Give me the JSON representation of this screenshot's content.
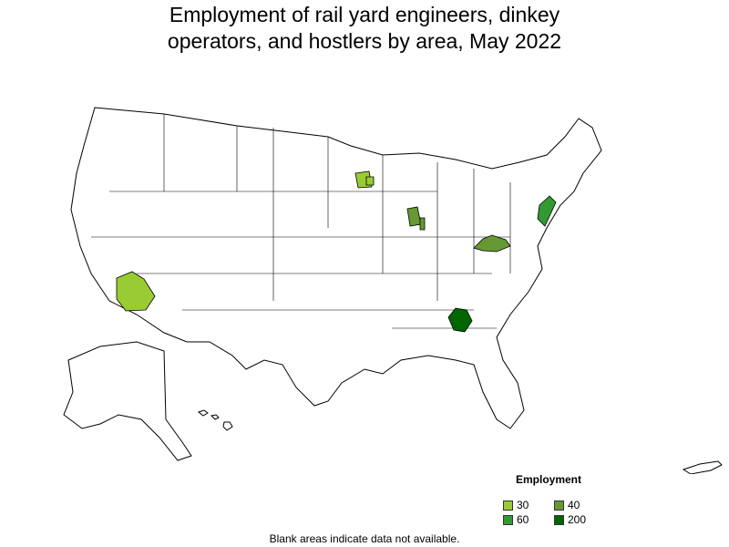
{
  "title_line1": "Employment of rail yard engineers, dinkey",
  "title_line2": "operators, and hostlers by area, May 2022",
  "legend": {
    "title": "Employment",
    "items": [
      {
        "label": "30",
        "color": "#99cc33"
      },
      {
        "label": "40",
        "color": "#669933"
      },
      {
        "label": "60",
        "color": "#339933"
      },
      {
        "label": "200",
        "color": "#006600"
      }
    ]
  },
  "footnote": "Blank areas indicate data not available.",
  "shaded_areas": [
    {
      "region": "southern California",
      "level": "30"
    },
    {
      "region": "central Minnesota",
      "level": "30"
    },
    {
      "region": "northern Illinois / Indiana",
      "level": "40"
    },
    {
      "region": "Ohio River valley",
      "level": "40"
    },
    {
      "region": "New Jersey / New York",
      "level": "60"
    },
    {
      "region": "northern Georgia",
      "level": "200"
    }
  ]
}
